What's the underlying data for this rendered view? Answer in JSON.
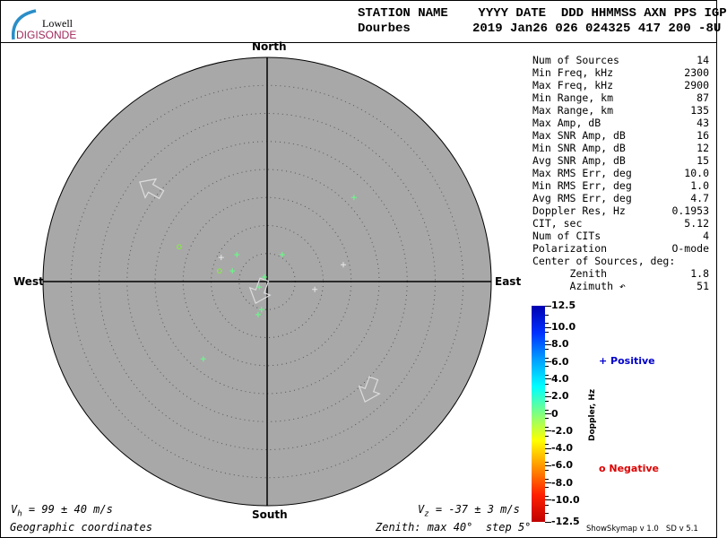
{
  "logo": {
    "line1": "Lowell",
    "line2": "DIGISONDE"
  },
  "header": {
    "labels": "STATION NAME    YYYY DATE  DDD HHMMSS AXN PPS IGP",
    "station": "Dourbes",
    "values": "2019 Jan26 026 024325 417 200 -8U"
  },
  "directions": {
    "north": "North",
    "south": "South",
    "east": "East",
    "west": "West"
  },
  "stats": [
    {
      "label": "Num of Sources",
      "value": "14"
    },
    {
      "label": "Min Freq, kHz",
      "value": "2300"
    },
    {
      "label": "Max Freq, kHz",
      "value": "2900"
    },
    {
      "label": "Min Range, km",
      "value": "87"
    },
    {
      "label": "Max Range, km",
      "value": "135"
    },
    {
      "label": "Max Amp, dB",
      "value": "43"
    },
    {
      "label": "Max SNR Amp, dB",
      "value": "16"
    },
    {
      "label": "Min SNR Amp, dB",
      "value": "12"
    },
    {
      "label": "Avg SNR Amp, dB",
      "value": "15"
    },
    {
      "label": "Max RMS Err, deg",
      "value": "10.0"
    },
    {
      "label": "Min RMS Err, deg",
      "value": "1.0"
    },
    {
      "label": "Avg RMS Err, deg",
      "value": "4.7"
    },
    {
      "label": "Doppler Res, Hz",
      "value": "0.1953"
    },
    {
      "label": "CIT, sec",
      "value": "5.12"
    },
    {
      "label": "Num of CITs",
      "value": "4"
    },
    {
      "label": "Polarization",
      "value": "O-mode"
    },
    {
      "label": "Center of Sources, deg:",
      "value": ""
    },
    {
      "label": "      Zenith",
      "value": "1.8"
    },
    {
      "label": "      Azimuth ↶",
      "value": "51"
    }
  ],
  "colorbar": {
    "title": "Doppler, Hz",
    "ticks": [
      "12.5",
      "10.0",
      "8.0",
      "6.0",
      "4.0",
      "2.0",
      "0",
      "-2.0",
      "-4.0",
      "-6.0",
      "-8.0",
      "-10.0",
      "-12.5"
    ],
    "colors": [
      "#0000b0",
      "#0030ff",
      "#00a0ff",
      "#00ffff",
      "#80ff80",
      "#ffff00",
      "#ff9000",
      "#ff2000",
      "#c00000"
    ]
  },
  "legend": {
    "positive": "+ Positive",
    "negative": "o Negative",
    "positive_color": "#0000cc",
    "negative_color": "#dd0000"
  },
  "footer": {
    "vh": "= 99 ± 40 m/s",
    "vz": "= -37 ± 3 m/s",
    "coords": "Geographic coordinates",
    "zenith": "Zenith: max 40°  step 5°",
    "version": "ShowSkymap v 1.0   SD v 5.1"
  },
  "skymap": {
    "max_zenith_deg": 40,
    "step_deg": 5,
    "background": "#a8a8a8",
    "sources": [
      {
        "east": 15.5,
        "north": 15.0,
        "sign": "+",
        "color": "#66ff88"
      },
      {
        "east": -8.2,
        "north": 4.3,
        "sign": "+",
        "color": "#e8e8e8"
      },
      {
        "east": -5.4,
        "north": 4.8,
        "sign": "+",
        "color": "#66ff88"
      },
      {
        "east": 2.7,
        "north": 4.8,
        "sign": "+",
        "color": "#66ff88"
      },
      {
        "east": -6.2,
        "north": 1.9,
        "sign": "+",
        "color": "#66ff88"
      },
      {
        "east": 13.6,
        "north": 3.0,
        "sign": "+",
        "color": "#e8e8e8"
      },
      {
        "east": -0.5,
        "north": 0.8,
        "sign": "+",
        "color": "#66ff88"
      },
      {
        "east": -1.4,
        "north": -1.0,
        "sign": "+",
        "color": "#66ff88"
      },
      {
        "east": 8.5,
        "north": -1.4,
        "sign": "+",
        "color": "#e8e8e8"
      },
      {
        "east": -1.0,
        "north": -5.0,
        "sign": "+",
        "color": "#66ff88"
      },
      {
        "east": -1.6,
        "north": -5.9,
        "sign": "+",
        "color": "#66ff88"
      },
      {
        "east": -11.4,
        "north": -13.8,
        "sign": "+",
        "color": "#66ff88"
      },
      {
        "east": -15.7,
        "north": 6.2,
        "sign": "o",
        "color": "#88ee44"
      },
      {
        "east": -8.5,
        "north": 1.9,
        "sign": "o",
        "color": "#88ee44"
      }
    ]
  }
}
